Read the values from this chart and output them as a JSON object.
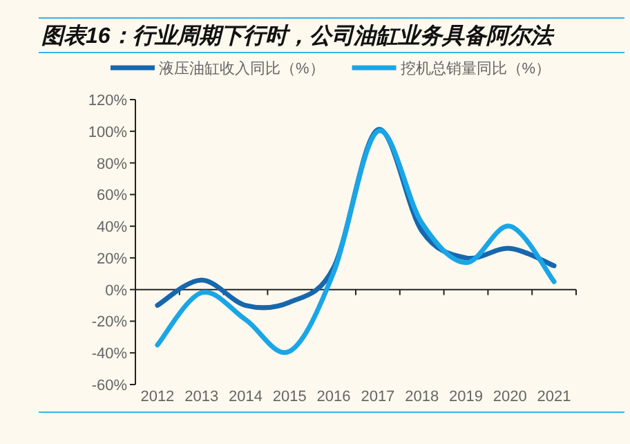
{
  "chart_data": {
    "type": "line",
    "title": "图表16：行业周期下行时，公司油缸业务具备阿尔法",
    "categories": [
      "2012",
      "2013",
      "2014",
      "2015",
      "2016",
      "2017",
      "2018",
      "2019",
      "2020",
      "2021"
    ],
    "series": [
      {
        "name": "液压油缸收入同比（%）",
        "color": "#1767ad",
        "values": [
          -10,
          6,
          -10,
          -8,
          14,
          101,
          37,
          20,
          26,
          15
        ]
      },
      {
        "name": "挖机总销量同比（%）",
        "color": "#1aa6e6",
        "values": [
          -35,
          -2,
          -19,
          -39,
          11,
          100,
          42,
          17,
          40,
          5
        ]
      }
    ],
    "ylim": [
      -60,
      120
    ],
    "yticks": [
      {
        "value": -60,
        "label": "-60%"
      },
      {
        "value": -40,
        "label": "-40%"
      },
      {
        "value": -20,
        "label": "-20%"
      },
      {
        "value": 0,
        "label": "0%"
      },
      {
        "value": 20,
        "label": "20%"
      },
      {
        "value": 40,
        "label": "40%"
      },
      {
        "value": 60,
        "label": "60%"
      },
      {
        "value": 80,
        "label": "80%"
      },
      {
        "value": 100,
        "label": "100%"
      },
      {
        "value": 120,
        "label": "120%"
      }
    ],
    "legend": "top"
  }
}
